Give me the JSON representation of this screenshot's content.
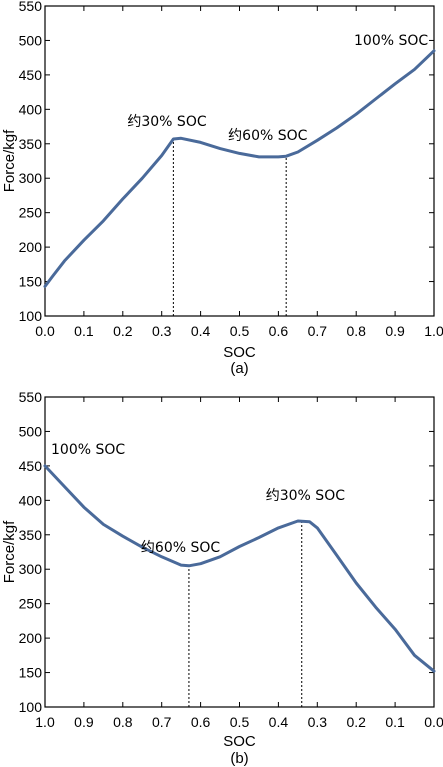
{
  "chart_data": [
    {
      "type": "line",
      "panel_label": "(a)",
      "xlabel": "SOC",
      "ylabel": "Force/kgf",
      "xlim": [
        0.0,
        1.0
      ],
      "x_reversed": false,
      "ylim": [
        100,
        550
      ],
      "xticks": [
        "0.0",
        "0.1",
        "0.2",
        "0.3",
        "0.4",
        "0.5",
        "0.6",
        "0.7",
        "0.8",
        "0.9",
        "1.0"
      ],
      "yticks": [
        "100",
        "150",
        "200",
        "250",
        "300",
        "350",
        "400",
        "450",
        "500",
        "550"
      ],
      "series": [
        {
          "color": "#4a6a9a",
          "x": [
            0.0,
            0.02,
            0.05,
            0.1,
            0.15,
            0.2,
            0.25,
            0.3,
            0.33,
            0.35,
            0.4,
            0.45,
            0.5,
            0.55,
            0.6,
            0.62,
            0.65,
            0.7,
            0.75,
            0.8,
            0.85,
            0.9,
            0.95,
            1.0
          ],
          "y": [
            143,
            158,
            180,
            210,
            238,
            270,
            300,
            333,
            357,
            358,
            352,
            343,
            336,
            331,
            331,
            332,
            338,
            355,
            373,
            393,
            415,
            437,
            458,
            485
          ]
        }
      ],
      "annotations": [
        {
          "text": "约30% SOC",
          "x": 0.33,
          "y": 357
        },
        {
          "text": "约60% SOC",
          "x": 0.62,
          "y": 331
        },
        {
          "text": "100% SOC",
          "x": 1.0,
          "y": 485
        }
      ],
      "guides": [
        0.33,
        0.62
      ],
      "grid": false
    },
    {
      "type": "line",
      "panel_label": "(b)",
      "xlabel": "SOC",
      "ylabel": "Force/kgf",
      "xlim": [
        1.0,
        0.0
      ],
      "x_reversed": true,
      "ylim": [
        100,
        550
      ],
      "xticks": [
        "1.0",
        "0.9",
        "0.8",
        "0.7",
        "0.6",
        "0.5",
        "0.4",
        "0.3",
        "0.2",
        "0.1",
        "0.0"
      ],
      "yticks": [
        "100",
        "150",
        "200",
        "250",
        "300",
        "350",
        "400",
        "450",
        "500",
        "550"
      ],
      "series": [
        {
          "color": "#4a6a9a",
          "x": [
            1.0,
            0.95,
            0.9,
            0.85,
            0.8,
            0.75,
            0.7,
            0.65,
            0.63,
            0.6,
            0.55,
            0.5,
            0.45,
            0.4,
            0.35,
            0.32,
            0.3,
            0.25,
            0.2,
            0.15,
            0.1,
            0.05,
            0.0
          ],
          "y": [
            450,
            420,
            390,
            365,
            348,
            332,
            318,
            306,
            305,
            308,
            318,
            333,
            346,
            360,
            370,
            369,
            360,
            320,
            280,
            245,
            213,
            175,
            152
          ]
        }
      ],
      "annotations": [
        {
          "text": "100% SOC",
          "x": 1.0,
          "y": 450
        },
        {
          "text": "约60% SOC",
          "x": 0.63,
          "y": 305
        },
        {
          "text": "约30% SOC",
          "x": 0.34,
          "y": 370
        }
      ],
      "guides": [
        0.63,
        0.34
      ],
      "grid": false
    }
  ]
}
